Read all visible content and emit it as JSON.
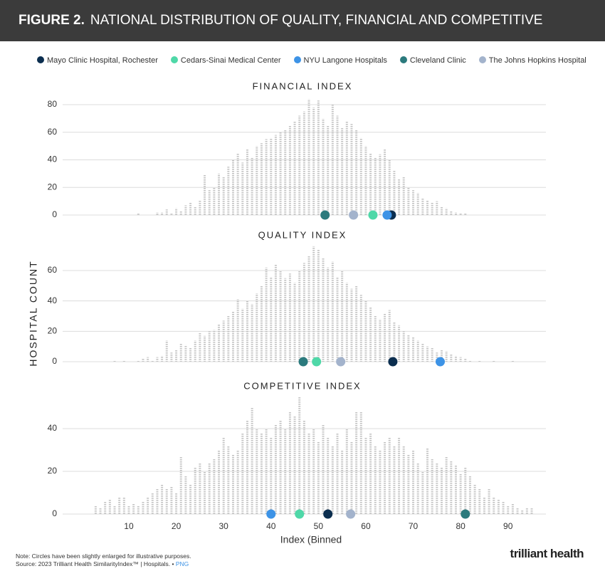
{
  "header": {
    "figure": "FIGURE 2.",
    "title": "NATIONAL DISTRIBUTION OF QUALITY, FINANCIAL AND COMPETITIVE INDEXES"
  },
  "hospitals": [
    {
      "name": "Mayo Clinic Hospital, Rochester",
      "color": "#0b2e4f"
    },
    {
      "name": "Cedars-Sinai Medical Center",
      "color": "#4fd8a8"
    },
    {
      "name": "NYU Langone Hospitals",
      "color": "#3d93e6"
    },
    {
      "name": "Cleveland Clinic",
      "color": "#2b7a7d"
    },
    {
      "name": "The Johns Hopkins Hospital",
      "color": "#a3b3cc"
    }
  ],
  "ylabel": "HOSPITAL COUNT",
  "xlabel": "Index (Binned",
  "xlim": [
    0,
    98
  ],
  "xticks": [
    10,
    20,
    30,
    40,
    50,
    60,
    70,
    80,
    90
  ],
  "chart_data": [
    {
      "type": "histogram",
      "title": "FINANCIAL INDEX",
      "color": "#c4c4c4",
      "grid": true,
      "ylim": [
        0,
        84
      ],
      "yticks": [
        0,
        20,
        40,
        60,
        80
      ],
      "x": [
        12,
        16,
        17,
        18,
        19,
        20,
        21,
        22,
        23,
        24,
        25,
        26,
        27,
        28,
        29,
        30,
        31,
        32,
        33,
        34,
        35,
        36,
        37,
        38,
        39,
        40,
        41,
        42,
        43,
        44,
        45,
        46,
        47,
        48,
        49,
        50,
        51,
        52,
        53,
        54,
        55,
        56,
        57,
        58,
        59,
        60,
        61,
        62,
        63,
        64,
        65,
        66,
        67,
        68,
        69,
        70,
        71,
        72,
        73,
        74,
        75,
        76,
        77,
        78,
        79,
        80,
        81
      ],
      "values": [
        1,
        2,
        2,
        4,
        1,
        5,
        3,
        7,
        9,
        6,
        11,
        29,
        18,
        20,
        30,
        28,
        35,
        40,
        45,
        38,
        48,
        42,
        50,
        52,
        55,
        56,
        58,
        60,
        62,
        65,
        68,
        72,
        75,
        84,
        78,
        83,
        70,
        65,
        80,
        72,
        63,
        68,
        66,
        62,
        56,
        50,
        45,
        42,
        44,
        48,
        40,
        32,
        26,
        28,
        20,
        18,
        16,
        12,
        11,
        9,
        10,
        6,
        5,
        3,
        2,
        1,
        1
      ],
      "markers": [
        65.4,
        61.5,
        64.5,
        51.4,
        57.4
      ]
    },
    {
      "type": "histogram",
      "title": "QUALITY INDEX",
      "color": "#c4c4c4",
      "grid": true,
      "ylim": [
        0,
        76
      ],
      "yticks": [
        0,
        20,
        40,
        60
      ],
      "x": [
        7,
        9,
        12,
        13,
        14,
        15,
        16,
        17,
        18,
        19,
        20,
        21,
        22,
        23,
        24,
        25,
        26,
        27,
        28,
        29,
        30,
        31,
        32,
        33,
        34,
        35,
        36,
        37,
        38,
        39,
        40,
        41,
        42,
        43,
        44,
        45,
        46,
        47,
        48,
        49,
        50,
        51,
        52,
        53,
        54,
        55,
        56,
        57,
        58,
        59,
        60,
        61,
        62,
        63,
        64,
        65,
        66,
        67,
        68,
        69,
        70,
        71,
        72,
        73,
        74,
        75,
        76,
        77,
        78,
        79,
        80,
        81,
        82,
        84,
        87,
        91
      ],
      "values": [
        1,
        1,
        1,
        2,
        3,
        1,
        3,
        4,
        14,
        6,
        8,
        12,
        11,
        9,
        14,
        19,
        17,
        20,
        21,
        25,
        27,
        30,
        33,
        41,
        35,
        40,
        38,
        45,
        50,
        62,
        56,
        64,
        60,
        55,
        58,
        52,
        60,
        65,
        70,
        76,
        74,
        68,
        62,
        66,
        56,
        60,
        52,
        48,
        50,
        44,
        40,
        36,
        30,
        28,
        32,
        34,
        26,
        24,
        20,
        18,
        16,
        14,
        12,
        10,
        9,
        6,
        8,
        7,
        5,
        4,
        3,
        2,
        1,
        1,
        1,
        1
      ],
      "markers": [
        65.7,
        49.6,
        75.7,
        46.8,
        54.7
      ]
    },
    {
      "type": "histogram",
      "title": "COMPETITIVE INDEX",
      "color": "#c4c4c4",
      "grid": true,
      "ylim": [
        0,
        56
      ],
      "yticks": [
        0,
        20,
        40
      ],
      "x": [
        3,
        4,
        5,
        6,
        7,
        8,
        9,
        10,
        11,
        12,
        13,
        14,
        15,
        16,
        17,
        18,
        19,
        20,
        21,
        22,
        23,
        24,
        25,
        26,
        27,
        28,
        29,
        30,
        31,
        32,
        33,
        34,
        35,
        36,
        37,
        38,
        39,
        40,
        41,
        42,
        43,
        44,
        45,
        46,
        47,
        48,
        49,
        50,
        51,
        52,
        53,
        54,
        55,
        56,
        57,
        58,
        59,
        60,
        61,
        62,
        63,
        64,
        65,
        66,
        67,
        68,
        69,
        70,
        71,
        72,
        73,
        74,
        75,
        76,
        77,
        78,
        79,
        80,
        81,
        82,
        83,
        84,
        85,
        86,
        87,
        88,
        89,
        90,
        91,
        92,
        93,
        94,
        95
      ],
      "values": [
        4,
        3,
        6,
        7,
        4,
        8,
        8,
        4,
        5,
        4,
        6,
        8,
        10,
        12,
        14,
        12,
        13,
        10,
        27,
        18,
        14,
        22,
        24,
        20,
        24,
        26,
        30,
        36,
        32,
        28,
        30,
        38,
        44,
        50,
        40,
        38,
        40,
        36,
        42,
        44,
        40,
        48,
        46,
        55,
        44,
        38,
        40,
        34,
        42,
        36,
        32,
        38,
        30,
        40,
        34,
        48,
        48,
        36,
        38,
        32,
        30,
        34,
        36,
        32,
        36,
        32,
        28,
        30,
        24,
        20,
        31,
        26,
        24,
        22,
        27,
        25,
        23,
        19,
        22,
        18,
        14,
        12,
        8,
        12,
        8,
        7,
        6,
        4,
        5,
        3,
        2,
        3,
        3
      ],
      "markers": [
        52.0,
        46.0,
        40.0,
        81.0,
        56.8
      ]
    }
  ],
  "footer": {
    "note": "Note: Circles have been slightly enlarged for illustrative purposes.",
    "source": "Source: 2023 Trilliant Health SimilarityIndex™ | Hospitals. •",
    "link": "PNG",
    "logo": "trilliant health"
  }
}
